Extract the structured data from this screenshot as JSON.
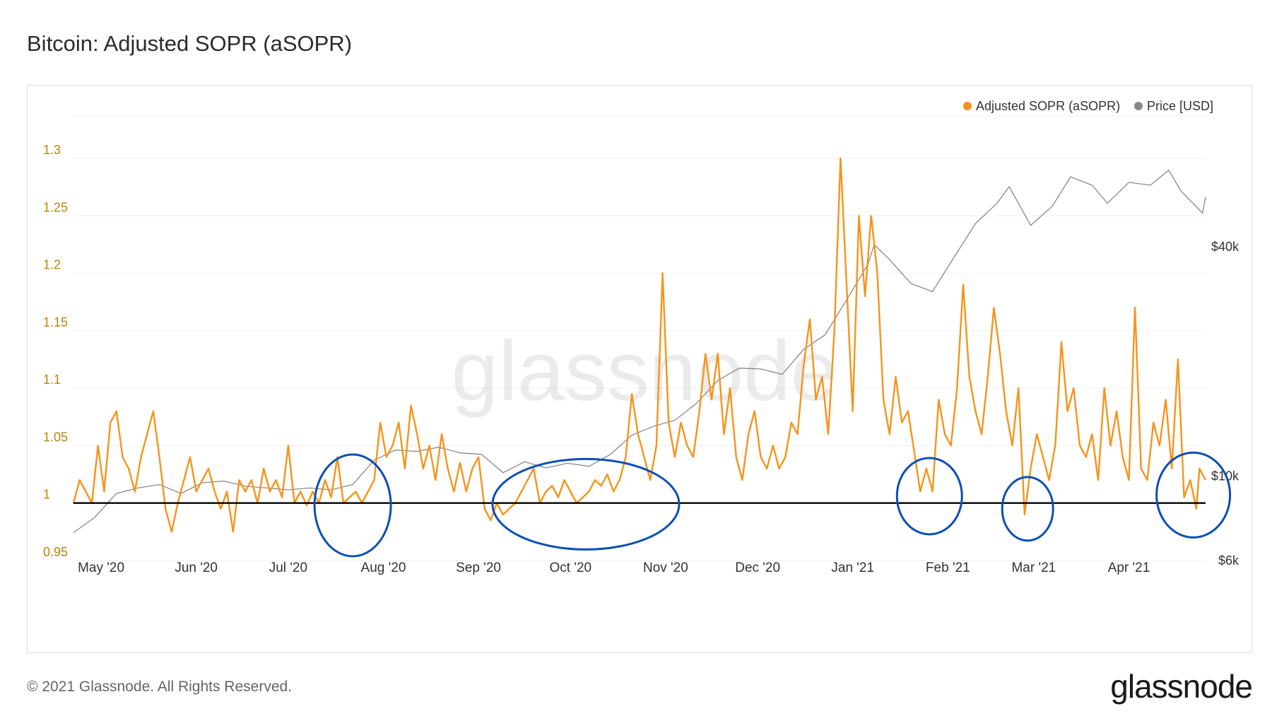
{
  "title": "Bitcoin: Adjusted SOPR (aSOPR)",
  "footer": "© 2021 Glassnode. All Rights Reserved.",
  "brand": "glassnode",
  "watermark": "glassnode",
  "colors": {
    "asopr": "#f7931a",
    "price": "#888888",
    "baseline": "#000000",
    "highlight": "#0b4fb3",
    "left_axis": "#b8860b"
  },
  "chart_data": {
    "type": "line",
    "legend": [
      {
        "label": "Adjusted SOPR (aSOPR)",
        "color": "#f7931a"
      },
      {
        "label": "Price [USD]",
        "color": "#888888"
      }
    ],
    "legend_position": "top-right",
    "x_ticks": [
      "May '20",
      "Jun '20",
      "Jul '20",
      "Aug '20",
      "Sep '20",
      "Oct '20",
      "Nov '20",
      "Dec '20",
      "Jan '21",
      "Feb '21",
      "Mar '21",
      "Apr '21"
    ],
    "x_tick_dates": [
      "2020-05-01",
      "2020-06-01",
      "2020-07-01",
      "2020-08-01",
      "2020-09-01",
      "2020-10-01",
      "2020-11-01",
      "2020-12-01",
      "2021-01-01",
      "2021-02-01",
      "2021-03-01",
      "2021-04-01"
    ],
    "x_range": [
      "2020-04-22",
      "2021-04-26"
    ],
    "y_left_ticks": [
      "0.95",
      "1",
      "1.05",
      "1.1",
      "1.15",
      "1.2",
      "1.25",
      "1.3"
    ],
    "y_left_range": [
      0.95,
      1.3
    ],
    "y_right_ticks": [
      "$6k",
      "$10k",
      "$40k"
    ],
    "y_right_scale": "log",
    "reference_line": 1,
    "grid": true,
    "series": [
      {
        "name": "Adjusted SOPR (aSOPR)",
        "axis": "left",
        "points": [
          [
            "2020-04-22",
            1.0
          ],
          [
            "2020-04-24",
            1.02
          ],
          [
            "2020-04-26",
            1.01
          ],
          [
            "2020-04-28",
            1.0
          ],
          [
            "2020-04-30",
            1.05
          ],
          [
            "2020-05-02",
            1.01
          ],
          [
            "2020-05-04",
            1.07
          ],
          [
            "2020-05-06",
            1.08
          ],
          [
            "2020-05-08",
            1.04
          ],
          [
            "2020-05-10",
            1.03
          ],
          [
            "2020-05-12",
            1.01
          ],
          [
            "2020-05-14",
            1.04
          ],
          [
            "2020-05-16",
            1.06
          ],
          [
            "2020-05-18",
            1.08
          ],
          [
            "2020-05-20",
            1.04
          ],
          [
            "2020-05-22",
            0.995
          ],
          [
            "2020-05-24",
            0.975
          ],
          [
            "2020-05-26",
            1.0
          ],
          [
            "2020-05-28",
            1.02
          ],
          [
            "2020-05-30",
            1.04
          ],
          [
            "2020-06-01",
            1.01
          ],
          [
            "2020-06-03",
            1.02
          ],
          [
            "2020-06-05",
            1.03
          ],
          [
            "2020-06-07",
            1.01
          ],
          [
            "2020-06-09",
            0.995
          ],
          [
            "2020-06-11",
            1.01
          ],
          [
            "2020-06-13",
            0.975
          ],
          [
            "2020-06-15",
            1.02
          ],
          [
            "2020-06-17",
            1.01
          ],
          [
            "2020-06-19",
            1.02
          ],
          [
            "2020-06-21",
            1.0
          ],
          [
            "2020-06-23",
            1.03
          ],
          [
            "2020-06-25",
            1.01
          ],
          [
            "2020-06-27",
            1.02
          ],
          [
            "2020-06-29",
            1.005
          ],
          [
            "2020-07-01",
            1.05
          ],
          [
            "2020-07-03",
            1.0
          ],
          [
            "2020-07-05",
            1.01
          ],
          [
            "2020-07-07",
            0.998
          ],
          [
            "2020-07-09",
            1.01
          ],
          [
            "2020-07-11",
            1.0
          ],
          [
            "2020-07-13",
            1.02
          ],
          [
            "2020-07-15",
            1.005
          ],
          [
            "2020-07-17",
            1.04
          ],
          [
            "2020-07-19",
            1.0
          ],
          [
            "2020-07-21",
            1.005
          ],
          [
            "2020-07-23",
            1.01
          ],
          [
            "2020-07-25",
            1.0
          ],
          [
            "2020-07-27",
            1.01
          ],
          [
            "2020-07-29",
            1.02
          ],
          [
            "2020-07-31",
            1.07
          ],
          [
            "2020-08-02",
            1.04
          ],
          [
            "2020-08-04",
            1.05
          ],
          [
            "2020-08-06",
            1.07
          ],
          [
            "2020-08-08",
            1.03
          ],
          [
            "2020-08-10",
            1.085
          ],
          [
            "2020-08-12",
            1.06
          ],
          [
            "2020-08-14",
            1.03
          ],
          [
            "2020-08-16",
            1.05
          ],
          [
            "2020-08-18",
            1.02
          ],
          [
            "2020-08-20",
            1.06
          ],
          [
            "2020-08-22",
            1.03
          ],
          [
            "2020-08-24",
            1.01
          ],
          [
            "2020-08-26",
            1.035
          ],
          [
            "2020-08-28",
            1.01
          ],
          [
            "2020-08-30",
            1.03
          ],
          [
            "2020-09-01",
            1.04
          ],
          [
            "2020-09-03",
            0.995
          ],
          [
            "2020-09-05",
            0.985
          ],
          [
            "2020-09-07",
            1.0
          ],
          [
            "2020-09-09",
            0.99
          ],
          [
            "2020-09-11",
            0.995
          ],
          [
            "2020-09-13",
            1.0
          ],
          [
            "2020-09-15",
            1.01
          ],
          [
            "2020-09-17",
            1.02
          ],
          [
            "2020-09-19",
            1.03
          ],
          [
            "2020-09-21",
            1.0
          ],
          [
            "2020-09-23",
            1.01
          ],
          [
            "2020-09-25",
            1.015
          ],
          [
            "2020-09-27",
            1.005
          ],
          [
            "2020-09-29",
            1.02
          ],
          [
            "2020-10-01",
            1.01
          ],
          [
            "2020-10-03",
            1.0
          ],
          [
            "2020-10-05",
            1.005
          ],
          [
            "2020-10-07",
            1.01
          ],
          [
            "2020-10-09",
            1.02
          ],
          [
            "2020-10-11",
            1.015
          ],
          [
            "2020-10-13",
            1.025
          ],
          [
            "2020-10-15",
            1.01
          ],
          [
            "2020-10-17",
            1.02
          ],
          [
            "2020-10-19",
            1.04
          ],
          [
            "2020-10-21",
            1.095
          ],
          [
            "2020-10-23",
            1.06
          ],
          [
            "2020-10-25",
            1.04
          ],
          [
            "2020-10-27",
            1.02
          ],
          [
            "2020-10-29",
            1.05
          ],
          [
            "2020-10-31",
            1.2
          ],
          [
            "2020-11-02",
            1.07
          ],
          [
            "2020-11-04",
            1.04
          ],
          [
            "2020-11-06",
            1.07
          ],
          [
            "2020-11-08",
            1.05
          ],
          [
            "2020-11-10",
            1.04
          ],
          [
            "2020-11-12",
            1.08
          ],
          [
            "2020-11-14",
            1.13
          ],
          [
            "2020-11-16",
            1.09
          ],
          [
            "2020-11-18",
            1.13
          ],
          [
            "2020-11-20",
            1.06
          ],
          [
            "2020-11-22",
            1.1
          ],
          [
            "2020-11-24",
            1.04
          ],
          [
            "2020-11-26",
            1.02
          ],
          [
            "2020-11-28",
            1.06
          ],
          [
            "2020-11-30",
            1.08
          ],
          [
            "2020-12-02",
            1.04
          ],
          [
            "2020-12-04",
            1.03
          ],
          [
            "2020-12-06",
            1.05
          ],
          [
            "2020-12-08",
            1.03
          ],
          [
            "2020-12-10",
            1.04
          ],
          [
            "2020-12-12",
            1.07
          ],
          [
            "2020-12-14",
            1.06
          ],
          [
            "2020-12-16",
            1.12
          ],
          [
            "2020-12-18",
            1.16
          ],
          [
            "2020-12-20",
            1.09
          ],
          [
            "2020-12-22",
            1.11
          ],
          [
            "2020-12-24",
            1.06
          ],
          [
            "2020-12-26",
            1.15
          ],
          [
            "2020-12-28",
            1.3
          ],
          [
            "2020-12-30",
            1.19
          ],
          [
            "2021-01-01",
            1.08
          ],
          [
            "2021-01-03",
            1.25
          ],
          [
            "2021-01-05",
            1.18
          ],
          [
            "2021-01-07",
            1.25
          ],
          [
            "2021-01-09",
            1.2
          ],
          [
            "2021-01-11",
            1.09
          ],
          [
            "2021-01-13",
            1.06
          ],
          [
            "2021-01-15",
            1.11
          ],
          [
            "2021-01-17",
            1.07
          ],
          [
            "2021-01-19",
            1.08
          ],
          [
            "2021-01-21",
            1.045
          ],
          [
            "2021-01-23",
            1.01
          ],
          [
            "2021-01-25",
            1.03
          ],
          [
            "2021-01-27",
            1.01
          ],
          [
            "2021-01-29",
            1.09
          ],
          [
            "2021-01-31",
            1.06
          ],
          [
            "2021-02-02",
            1.05
          ],
          [
            "2021-02-04",
            1.1
          ],
          [
            "2021-02-06",
            1.19
          ],
          [
            "2021-02-08",
            1.11
          ],
          [
            "2021-02-10",
            1.08
          ],
          [
            "2021-02-12",
            1.06
          ],
          [
            "2021-02-14",
            1.11
          ],
          [
            "2021-02-16",
            1.17
          ],
          [
            "2021-02-18",
            1.13
          ],
          [
            "2021-02-20",
            1.08
          ],
          [
            "2021-02-22",
            1.05
          ],
          [
            "2021-02-24",
            1.1
          ],
          [
            "2021-02-26",
            0.99
          ],
          [
            "2021-02-28",
            1.03
          ],
          [
            "2021-03-02",
            1.06
          ],
          [
            "2021-03-04",
            1.04
          ],
          [
            "2021-03-06",
            1.02
          ],
          [
            "2021-03-08",
            1.05
          ],
          [
            "2021-03-10",
            1.14
          ],
          [
            "2021-03-12",
            1.08
          ],
          [
            "2021-03-14",
            1.1
          ],
          [
            "2021-03-16",
            1.05
          ],
          [
            "2021-03-18",
            1.04
          ],
          [
            "2021-03-20",
            1.06
          ],
          [
            "2021-03-22",
            1.02
          ],
          [
            "2021-03-24",
            1.1
          ],
          [
            "2021-03-26",
            1.05
          ],
          [
            "2021-03-28",
            1.08
          ],
          [
            "2021-03-30",
            1.04
          ],
          [
            "2021-04-01",
            1.02
          ],
          [
            "2021-04-03",
            1.17
          ],
          [
            "2021-04-05",
            1.03
          ],
          [
            "2021-04-07",
            1.02
          ],
          [
            "2021-04-09",
            1.07
          ],
          [
            "2021-04-11",
            1.05
          ],
          [
            "2021-04-13",
            1.09
          ],
          [
            "2021-04-15",
            1.03
          ],
          [
            "2021-04-17",
            1.125
          ],
          [
            "2021-04-19",
            1.005
          ],
          [
            "2021-04-21",
            1.02
          ],
          [
            "2021-04-23",
            0.995
          ],
          [
            "2021-04-24",
            1.03
          ],
          [
            "2021-04-26",
            1.02
          ]
        ]
      },
      {
        "name": "Price [USD]",
        "axis": "right",
        "points": [
          [
            "2020-04-22",
            7100
          ],
          [
            "2020-04-29",
            7800
          ],
          [
            "2020-05-06",
            9000
          ],
          [
            "2020-05-13",
            9300
          ],
          [
            "2020-05-20",
            9500
          ],
          [
            "2020-05-27",
            9000
          ],
          [
            "2020-06-03",
            9600
          ],
          [
            "2020-06-10",
            9700
          ],
          [
            "2020-06-17",
            9400
          ],
          [
            "2020-06-24",
            9300
          ],
          [
            "2020-07-01",
            9200
          ],
          [
            "2020-07-08",
            9300
          ],
          [
            "2020-07-15",
            9200
          ],
          [
            "2020-07-22",
            9500
          ],
          [
            "2020-07-29",
            11000
          ],
          [
            "2020-08-05",
            11700
          ],
          [
            "2020-08-12",
            11600
          ],
          [
            "2020-08-19",
            11900
          ],
          [
            "2020-08-26",
            11500
          ],
          [
            "2020-09-02",
            11400
          ],
          [
            "2020-09-09",
            10200
          ],
          [
            "2020-09-16",
            10900
          ],
          [
            "2020-09-23",
            10500
          ],
          [
            "2020-09-30",
            10800
          ],
          [
            "2020-10-07",
            10600
          ],
          [
            "2020-10-14",
            11400
          ],
          [
            "2020-10-21",
            12800
          ],
          [
            "2020-10-28",
            13500
          ],
          [
            "2020-11-04",
            14000
          ],
          [
            "2020-11-11",
            15500
          ],
          [
            "2020-11-18",
            17800
          ],
          [
            "2020-11-25",
            19200
          ],
          [
            "2020-12-02",
            19100
          ],
          [
            "2020-12-09",
            18500
          ],
          [
            "2020-12-16",
            21500
          ],
          [
            "2020-12-23",
            23500
          ],
          [
            "2020-12-30",
            29000
          ],
          [
            "2021-01-06",
            36000
          ],
          [
            "2021-01-08",
            40500
          ],
          [
            "2021-01-13",
            37000
          ],
          [
            "2021-01-20",
            32000
          ],
          [
            "2021-01-27",
            30500
          ],
          [
            "2021-02-03",
            37500
          ],
          [
            "2021-02-10",
            46000
          ],
          [
            "2021-02-17",
            52000
          ],
          [
            "2021-02-21",
            57500
          ],
          [
            "2021-02-28",
            45500
          ],
          [
            "2021-03-07",
            51000
          ],
          [
            "2021-03-13",
            61000
          ],
          [
            "2021-03-20",
            58000
          ],
          [
            "2021-03-25",
            52000
          ],
          [
            "2021-04-01",
            59000
          ],
          [
            "2021-04-08",
            58000
          ],
          [
            "2021-04-14",
            63500
          ],
          [
            "2021-04-18",
            56000
          ],
          [
            "2021-04-25",
            49000
          ],
          [
            "2021-04-26",
            54000
          ]
        ]
      }
    ]
  }
}
